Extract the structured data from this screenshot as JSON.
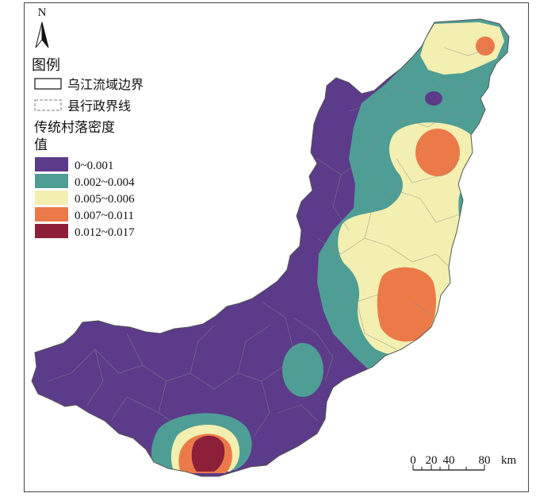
{
  "north_arrow": {
    "label": "N",
    "icon": "north-arrow-icon"
  },
  "legend": {
    "title": "图例",
    "boundary_items": [
      {
        "label": "乌江流域边界",
        "style": "solid"
      },
      {
        "label": "县行政界线",
        "style": "dashed"
      }
    ],
    "density_title_line1": "传统村落密度",
    "density_title_line2": "值",
    "classes": [
      {
        "label": "0~0.001",
        "color": "#5b3b8a"
      },
      {
        "label": "0.002~0.004",
        "color": "#4f9e96"
      },
      {
        "label": "0.005~0.006",
        "color": "#f2efb0"
      },
      {
        "label": "0.007~0.011",
        "color": "#ec7a49"
      },
      {
        "label": "0.012~0.017",
        "color": "#8c2039"
      }
    ]
  },
  "scale_bar": {
    "ticks": [
      "0",
      "20",
      "40",
      "80"
    ],
    "unit": "km"
  }
}
